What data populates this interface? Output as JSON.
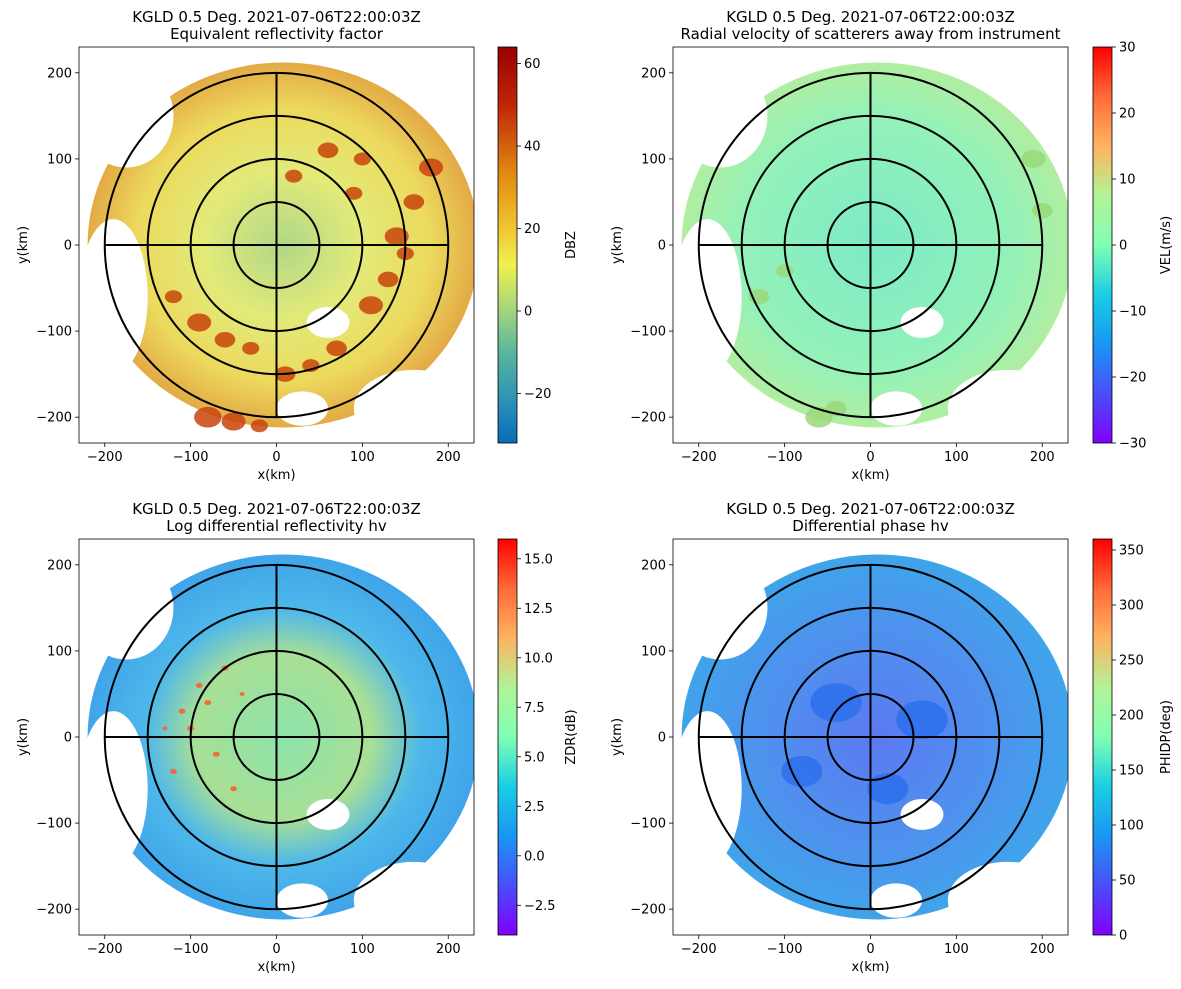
{
  "figure": {
    "layout": "2x2 radar PPI panels"
  },
  "chart_data": [
    {
      "type": "heatmap",
      "title_line1": "KGLD 0.5 Deg. 2021-07-06T22:00:03Z",
      "title_line2": "Equivalent reflectivity factor",
      "xlabel": "x(km)",
      "ylabel": "y(km)",
      "xlim": [
        -230,
        230
      ],
      "ylim": [
        -230,
        230
      ],
      "xticks": [
        -200,
        -100,
        0,
        100,
        200
      ],
      "yticks": [
        -200,
        -100,
        0,
        100,
        200
      ],
      "xtick_labels": [
        "−200",
        "−100",
        "0",
        "100",
        "200"
      ],
      "ytick_labels": [
        "−200",
        "−100",
        "0",
        "100",
        "200"
      ],
      "range_rings_km": [
        50,
        100,
        150,
        200
      ],
      "colorbar": {
        "label": "DBZ",
        "vmin": -32,
        "vmax": 64,
        "colormap": "radar-reflectivity",
        "ticks": [
          -20,
          0,
          20,
          40,
          60
        ],
        "tick_labels": [
          "−20",
          "0",
          "20",
          "40",
          "60"
        ]
      }
    },
    {
      "type": "heatmap",
      "title_line1": "KGLD 0.5 Deg. 2021-07-06T22:00:03Z",
      "title_line2": "Radial velocity of scatterers away from instrument",
      "xlabel": "x(km)",
      "ylabel": "y(km)",
      "xlim": [
        -230,
        230
      ],
      "ylim": [
        -230,
        230
      ],
      "xticks": [
        -200,
        -100,
        0,
        100,
        200
      ],
      "yticks": [
        -200,
        -100,
        0,
        100,
        200
      ],
      "xtick_labels": [
        "−200",
        "−100",
        "0",
        "100",
        "200"
      ],
      "ytick_labels": [
        "−200",
        "−100",
        "0",
        "100",
        "200"
      ],
      "range_rings_km": [
        50,
        100,
        150,
        200
      ],
      "colorbar": {
        "label": "VEL(m/s)",
        "vmin": -30,
        "vmax": 30,
        "colormap": "rainbow",
        "ticks": [
          -30,
          -20,
          -10,
          0,
          10,
          20,
          30
        ],
        "tick_labels": [
          "−30",
          "−20",
          "−10",
          "0",
          "10",
          "20",
          "30"
        ]
      }
    },
    {
      "type": "heatmap",
      "title_line1": "KGLD 0.5 Deg. 2021-07-06T22:00:03Z",
      "title_line2": "Log differential reflectivity hv",
      "xlabel": "x(km)",
      "ylabel": "y(km)",
      "xlim": [
        -230,
        230
      ],
      "ylim": [
        -230,
        230
      ],
      "xticks": [
        -200,
        -100,
        0,
        100,
        200
      ],
      "yticks": [
        -200,
        -100,
        0,
        100,
        200
      ],
      "xtick_labels": [
        "−200",
        "−100",
        "0",
        "100",
        "200"
      ],
      "ytick_labels": [
        "−200",
        "−100",
        "0",
        "100",
        "200"
      ],
      "range_rings_km": [
        50,
        100,
        150,
        200
      ],
      "colorbar": {
        "label": "ZDR(dB)",
        "vmin": -4,
        "vmax": 16,
        "colormap": "rainbow",
        "ticks": [
          -2.5,
          0,
          2.5,
          5,
          7.5,
          10,
          12.5,
          15
        ],
        "tick_labels": [
          "−2.5",
          "0.0",
          "2.5",
          "5.0",
          "7.5",
          "10.0",
          "12.5",
          "15.0"
        ]
      }
    },
    {
      "type": "heatmap",
      "title_line1": "KGLD 0.5 Deg. 2021-07-06T22:00:03Z",
      "title_line2": "Differential phase hv",
      "xlabel": "x(km)",
      "ylabel": "y(km)",
      "xlim": [
        -230,
        230
      ],
      "ylim": [
        -230,
        230
      ],
      "xticks": [
        -200,
        -100,
        0,
        100,
        200
      ],
      "yticks": [
        -200,
        -100,
        0,
        100,
        200
      ],
      "xtick_labels": [
        "−200",
        "−100",
        "0",
        "100",
        "200"
      ],
      "ytick_labels": [
        "−200",
        "−100",
        "0",
        "100",
        "200"
      ],
      "range_rings_km": [
        50,
        100,
        150,
        200
      ],
      "colorbar": {
        "label": "PHIDP(deg)",
        "vmin": 0,
        "vmax": 360,
        "colormap": "rainbow",
        "ticks": [
          0,
          50,
          100,
          150,
          200,
          250,
          300,
          350
        ],
        "tick_labels": [
          "0",
          "50",
          "100",
          "150",
          "200",
          "250",
          "300",
          "350"
        ]
      }
    }
  ]
}
